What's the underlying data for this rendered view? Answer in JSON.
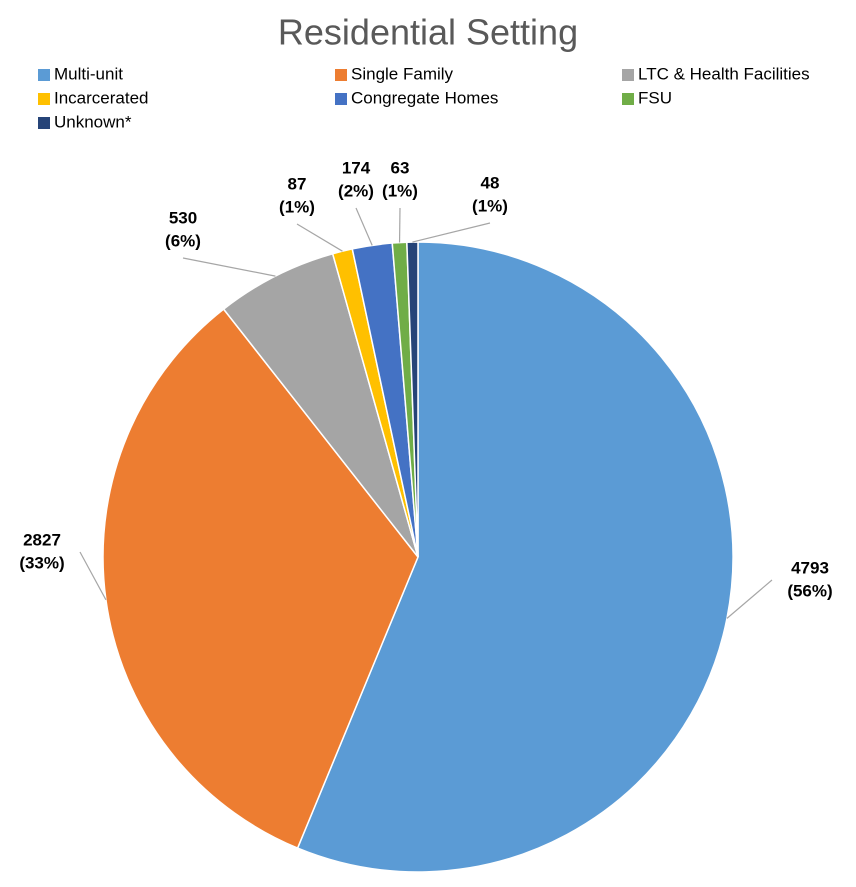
{
  "chart_data": {
    "type": "pie",
    "title": "Residential Setting",
    "categories": [
      "Multi-unit",
      "Single Family",
      "LTC & Health Facilities",
      "Incarcerated",
      "Congregate Homes",
      "FSU",
      "Unknown*"
    ],
    "values": [
      4793,
      2827,
      530,
      87,
      174,
      63,
      48
    ],
    "percent_labels": [
      "(56%)",
      "(33%)",
      "(6%)",
      "(1%)",
      "(2%)",
      "(1%)",
      "(1%)"
    ],
    "colors": [
      "#5b9bd5",
      "#ed7d31",
      "#a5a5a5",
      "#ffc000",
      "#4472c4",
      "#70ad47",
      "#264478"
    ],
    "legend": "top"
  }
}
